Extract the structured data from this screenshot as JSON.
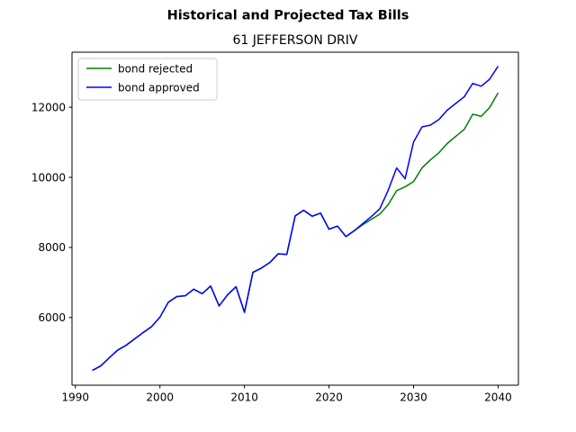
{
  "chart_data": {
    "type": "line",
    "suptitle": "Historical and Projected Tax Bills",
    "title": "61 JEFFERSON DRIV",
    "xlabel": "",
    "ylabel": "",
    "xlim": [
      1989.6,
      2042.4
    ],
    "ylim": [
      4070,
      13570
    ],
    "xticks": [
      1990,
      2000,
      2010,
      2020,
      2030,
      2040
    ],
    "yticks": [
      6000,
      8000,
      10000,
      12000
    ],
    "grid": false,
    "legend": {
      "placement": "upper-left"
    },
    "series": [
      {
        "name": "bond rejected",
        "color": "#008000",
        "x": [
          1992,
          1993,
          1994,
          1995,
          1996,
          1997,
          1998,
          1999,
          2000,
          2001,
          2002,
          2003,
          2004,
          2005,
          2006,
          2007,
          2008,
          2009,
          2010,
          2011,
          2012,
          2013,
          2014,
          2015,
          2016,
          2017,
          2018,
          2019,
          2020,
          2021,
          2022,
          2023,
          2024,
          2025,
          2026,
          2027,
          2028,
          2029,
          2030,
          2031,
          2032,
          2033,
          2034,
          2035,
          2036,
          2037,
          2038,
          2039,
          2040
        ],
        "y": [
          4490,
          4620,
          4850,
          5070,
          5210,
          5390,
          5570,
          5740,
          6010,
          6440,
          6600,
          6620,
          6810,
          6680,
          6900,
          6330,
          6650,
          6880,
          6150,
          7290,
          7410,
          7570,
          7820,
          7800,
          8900,
          9060,
          8890,
          8980,
          8520,
          8610,
          8310,
          8480,
          8650,
          8800,
          8950,
          9220,
          9620,
          9730,
          9880,
          10270,
          10500,
          10700,
          10970,
          11170,
          11370,
          11800,
          11740,
          11990,
          12410
        ]
      },
      {
        "name": "bond approved",
        "color": "#0000ff",
        "x": [
          1992,
          1993,
          1994,
          1995,
          1996,
          1997,
          1998,
          1999,
          2000,
          2001,
          2002,
          2003,
          2004,
          2005,
          2006,
          2007,
          2008,
          2009,
          2010,
          2011,
          2012,
          2013,
          2014,
          2015,
          2016,
          2017,
          2018,
          2019,
          2020,
          2021,
          2022,
          2023,
          2024,
          2025,
          2026,
          2027,
          2028,
          2029,
          2030,
          2031,
          2032,
          2033,
          2034,
          2035,
          2036,
          2037,
          2038,
          2039,
          2040
        ],
        "y": [
          4490,
          4620,
          4850,
          5070,
          5210,
          5390,
          5570,
          5740,
          6010,
          6440,
          6600,
          6620,
          6810,
          6680,
          6900,
          6330,
          6650,
          6880,
          6150,
          7290,
          7410,
          7570,
          7820,
          7800,
          8900,
          9060,
          8890,
          8980,
          8520,
          8610,
          8310,
          8480,
          8680,
          8880,
          9100,
          9630,
          10270,
          9960,
          11010,
          11440,
          11490,
          11650,
          11920,
          12110,
          12300,
          12680,
          12600,
          12800,
          13170
        ]
      }
    ]
  }
}
